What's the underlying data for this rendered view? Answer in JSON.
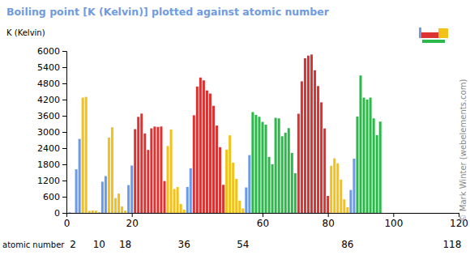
{
  "chart_data": {
    "type": "bar",
    "title": "Boiling point [K (Kelvin)] plotted against atomic number",
    "ylabel": "K (Kelvin)",
    "xlabel": "atomic number",
    "source": "© Mark Winter (webelements.com)",
    "x": [
      1,
      2,
      3,
      4,
      5,
      6,
      7,
      8,
      9,
      10,
      11,
      12,
      13,
      14,
      15,
      16,
      17,
      18,
      19,
      20,
      21,
      22,
      23,
      24,
      25,
      26,
      27,
      28,
      29,
      30,
      31,
      32,
      33,
      34,
      35,
      36,
      37,
      38,
      39,
      40,
      41,
      42,
      43,
      44,
      45,
      46,
      47,
      48,
      49,
      50,
      51,
      52,
      53,
      54,
      55,
      56,
      57,
      58,
      59,
      60,
      61,
      62,
      63,
      64,
      65,
      66,
      67,
      68,
      69,
      70,
      71,
      72,
      73,
      74,
      75,
      76,
      77,
      78,
      79,
      80,
      81,
      82,
      83,
      84,
      85,
      86,
      87,
      88,
      89,
      90,
      91,
      92,
      93,
      94,
      95,
      96,
      97,
      98,
      99,
      100,
      101,
      102,
      103,
      104,
      105,
      106,
      107,
      108,
      109,
      110,
      111,
      112,
      113,
      114,
      115,
      116,
      117,
      118
    ],
    "values": [
      20,
      4,
      1615,
      2743,
      4273,
      4300,
      77,
      90,
      85,
      27,
      1156,
      1363,
      2792,
      3173,
      550,
      718,
      239,
      87,
      1032,
      1757,
      3103,
      3560,
      3680,
      2944,
      2334,
      3134,
      3200,
      3186,
      3200,
      1180,
      2477,
      3093,
      887,
      958,
      332,
      120,
      961,
      1655,
      3618,
      4682,
      5017,
      4912,
      4538,
      4423,
      3968,
      3236,
      2435,
      1040,
      2345,
      2875,
      1860,
      1261,
      457,
      165,
      944,
      2143,
      3737,
      3633,
      3563,
      3373,
      3273,
      2076,
      1800,
      3523,
      3503,
      2840,
      2973,
      3141,
      2223,
      1469,
      3675,
      4876,
      5731,
      5828,
      5869,
      5285,
      4701,
      4098,
      3129,
      630,
      1746,
      2022,
      1837,
      1235,
      503,
      211,
      850,
      2010,
      3573,
      5093,
      4273,
      4200,
      4273,
      3503,
      2880,
      3383,
      null,
      null,
      null,
      null,
      null,
      null,
      null,
      null,
      null,
      null,
      null,
      null,
      null,
      null,
      null,
      null,
      null,
      null,
      null,
      null,
      null,
      null
    ],
    "colors": [
      "#6a9be8",
      "#6a9be8",
      "#6a9be8",
      "#6a9be8",
      "#f2c21b",
      "#f2c21b",
      "#f2c21b",
      "#f2c21b",
      "#f2c21b",
      "#f2c21b",
      "#6a9be8",
      "#6a9be8",
      "#f2c21b",
      "#f2c21b",
      "#f2c21b",
      "#f2c21b",
      "#f2c21b",
      "#f2c21b",
      "#6a9be8",
      "#6a9be8",
      "#dc3232",
      "#dc3232",
      "#dc3232",
      "#dc3232",
      "#dc3232",
      "#dc3232",
      "#dc3232",
      "#dc3232",
      "#dc3232",
      "#dc3232",
      "#f2c21b",
      "#f2c21b",
      "#f2c21b",
      "#f2c21b",
      "#f2c21b",
      "#f2c21b",
      "#6a9be8",
      "#6a9be8",
      "#dc3232",
      "#dc3232",
      "#dc3232",
      "#dc3232",
      "#dc3232",
      "#dc3232",
      "#dc3232",
      "#dc3232",
      "#dc3232",
      "#dc3232",
      "#f2c21b",
      "#f2c21b",
      "#f2c21b",
      "#f2c21b",
      "#f2c21b",
      "#f2c21b",
      "#6a9be8",
      "#6a9be8",
      "#2cb84a",
      "#2cb84a",
      "#2cb84a",
      "#2cb84a",
      "#2cb84a",
      "#2cb84a",
      "#2cb84a",
      "#2cb84a",
      "#2cb84a",
      "#2cb84a",
      "#2cb84a",
      "#2cb84a",
      "#2cb84a",
      "#2cb84a",
      "#dc3232",
      "#dc3232",
      "#dc3232",
      "#dc3232",
      "#dc3232",
      "#dc3232",
      "#dc3232",
      "#dc3232",
      "#dc3232",
      "#dc3232",
      "#f2c21b",
      "#f2c21b",
      "#f2c21b",
      "#f2c21b",
      "#f2c21b",
      "#f2c21b",
      "#6a9be8",
      "#6a9be8",
      "#2cb84a",
      "#2cb84a",
      "#2cb84a",
      "#2cb84a",
      "#2cb84a",
      "#2cb84a",
      "#2cb84a",
      "#2cb84a",
      "#2cb84a",
      "#2cb84a",
      "#2cb84a",
      "#2cb84a",
      "#2cb84a",
      "#2cb84a",
      "#dc3232",
      "#dc3232",
      "#dc3232",
      "#dc3232",
      "#dc3232",
      "#dc3232",
      "#dc3232",
      "#dc3232",
      "#dc3232",
      "#dc3232",
      "#f2c21b",
      "#f2c21b",
      "#f2c21b",
      "#f2c21b",
      "#f2c21b",
      "#f2c21b"
    ],
    "xlim": [
      0,
      120
    ],
    "xticks": [
      0,
      20,
      60,
      80,
      100,
      120
    ],
    "ylim": [
      0,
      6000
    ],
    "yticks": [
      0,
      600,
      1200,
      1800,
      2400,
      3000,
      3600,
      4200,
      4800,
      5400,
      6000
    ],
    "annotations": [
      {
        "x": 2,
        "text": "2"
      },
      {
        "x": 10,
        "text": "10"
      },
      {
        "x": 18,
        "text": "18"
      },
      {
        "x": 36,
        "text": "36"
      },
      {
        "x": 54,
        "text": "54"
      },
      {
        "x": 86,
        "text": "86"
      },
      {
        "x": 118,
        "text": "118"
      }
    ],
    "grid": false
  }
}
